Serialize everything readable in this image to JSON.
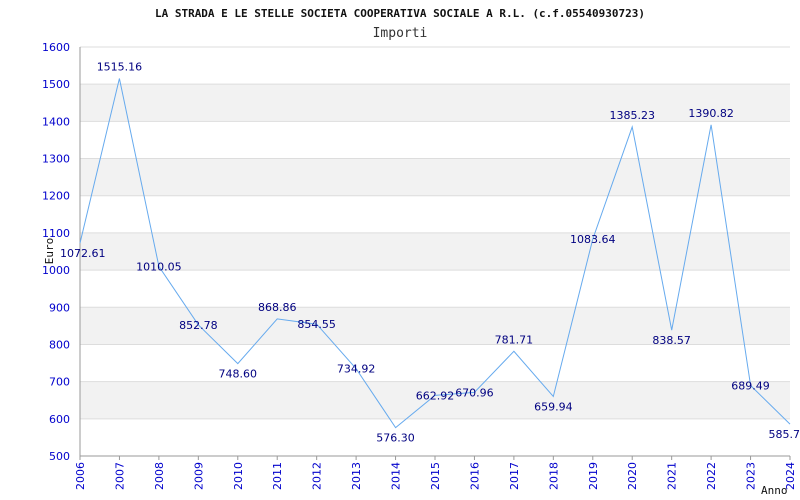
{
  "chart_data": {
    "type": "line",
    "title": "LA STRADA E LE STELLE SOCIETA COOPERATIVA SOCIALE A R.L. (c.f.05540930723)",
    "subtitle": "Importi",
    "xlabel": "Anno",
    "ylabel": "Euro",
    "x": [
      "2006",
      "2007",
      "2008",
      "2009",
      "2010",
      "2011",
      "2012",
      "2013",
      "2014",
      "2015",
      "2016",
      "2017",
      "2018",
      "2019",
      "2020",
      "2021",
      "2022",
      "2023",
      "2024"
    ],
    "values": [
      1072.61,
      1515.16,
      1010.05,
      852.78,
      748.6,
      868.86,
      854.55,
      734.92,
      576.3,
      662.92,
      670.96,
      781.71,
      659.94,
      1083.64,
      1385.23,
      838.57,
      1390.82,
      689.49,
      585.7
    ],
    "labels": [
      "1072.61",
      "1515.16",
      "1010.05",
      "852.78",
      "748.60",
      "868.86",
      "854.55",
      "734.92",
      "576.30",
      "662.92",
      "670.96",
      "781.71",
      "659.94",
      "1083.64",
      "1385.23",
      "838.57",
      "1390.82",
      "689.49",
      "585.7"
    ],
    "yticks": [
      "500",
      "600",
      "700",
      "800",
      "900",
      "1000",
      "1100",
      "1200",
      "1300",
      "1400",
      "1500",
      "1600"
    ],
    "ylim": [
      500,
      1600
    ],
    "grid": "horizontal bands",
    "colors": {
      "line": "#66aaee",
      "label": "#000080",
      "tick": "#0000cc",
      "band": "#f2f2f2",
      "grid": "#dddddd"
    }
  }
}
